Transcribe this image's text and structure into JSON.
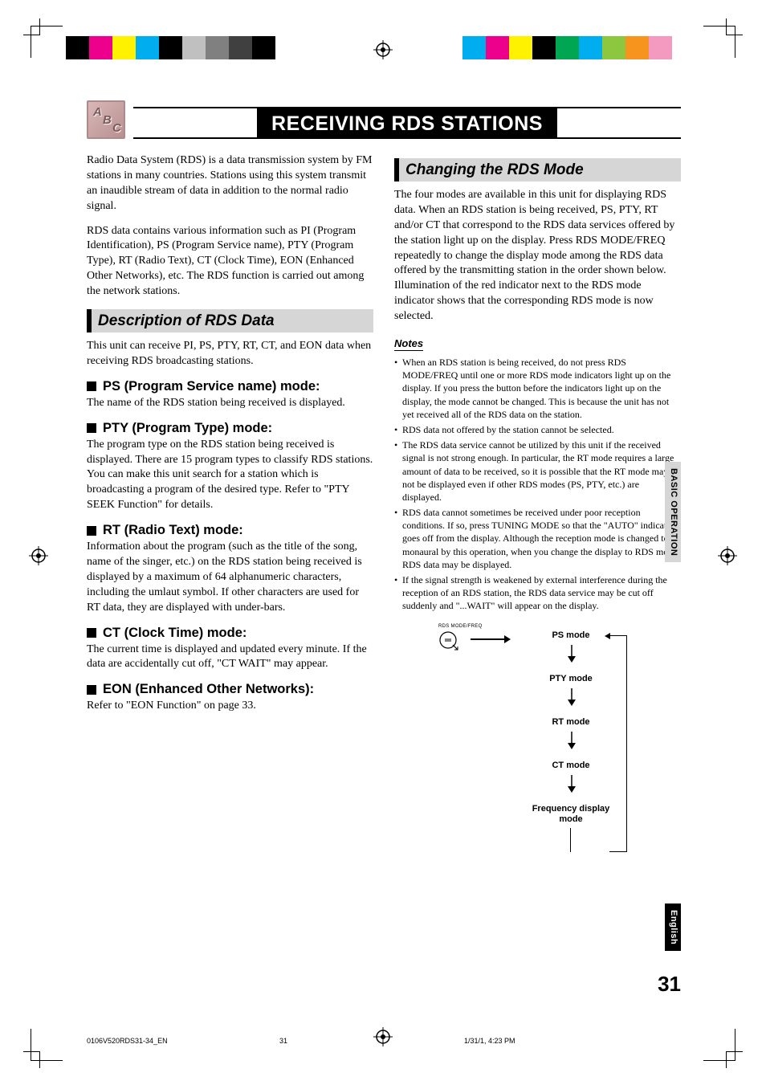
{
  "registration": {
    "left_colors": [
      "#000000",
      "#ec008c",
      "#fff200",
      "#00aeef",
      "#000000",
      "#c0c0c0",
      "#808080",
      "#404040",
      "#000000"
    ],
    "right_colors": [
      "#00aeef",
      "#ec008c",
      "#fff200",
      "#000000",
      "#00a651",
      "#00aeef",
      "#8dc63f",
      "#f7941e",
      "#f49ac1"
    ]
  },
  "header": {
    "icon_letters": [
      "A",
      "B",
      "C"
    ],
    "title": "RECEIVING RDS STATIONS"
  },
  "left_col": {
    "intro1": "Radio Data System (RDS) is a data transmission system by FM stations in many countries. Stations using this system transmit an inaudible stream of data in addition to the normal radio signal.",
    "intro2": "RDS data contains various information such as PI (Program Identification), PS (Program Service name), PTY (Program Type), RT (Radio Text), CT (Clock Time), EON (Enhanced Other Networks), etc. The RDS function is carried out among the network stations.",
    "section1_title": "Description of RDS Data",
    "section1_text": "This unit can receive PI, PS, PTY, RT, CT, and EON data when receiving RDS broadcasting stations.",
    "ps_h": "PS (Program Service name) mode:",
    "ps_t": "The name of the RDS station being received is displayed.",
    "pty_h": "PTY (Program Type) mode:",
    "pty_t": "The program type on the RDS station being received is displayed. There are 15 program types to classify RDS stations. You can make this unit search for a station which is broadcasting a program of the desired type. Refer to \"PTY SEEK Function\" for details.",
    "rt_h": "RT (Radio Text) mode:",
    "rt_t": "Information about the program (such as the title of the song, name of the singer, etc.) on the RDS station being received is displayed by a maximum of 64 alphanumeric characters, including the umlaut symbol. If other characters are used for RT data, they are displayed with under-bars.",
    "ct_h": "CT (Clock Time) mode:",
    "ct_t": "The current time is displayed and updated every minute. If the data are accidentally cut off, \"CT WAIT\" may appear.",
    "eon_h": "EON (Enhanced Other Networks):",
    "eon_t": "Refer to \"EON Function\" on page 33."
  },
  "right_col": {
    "section2_title": "Changing the RDS Mode",
    "section2_text": "The four modes are available in this unit for displaying RDS data. When an RDS station is being received, PS, PTY, RT and/or CT that correspond to the RDS data services offered by the station light up on the display. Press RDS MODE/FREQ repeatedly to change the display mode among the RDS data offered by the transmitting station in the order shown below. Illumination of the red indicator next to the RDS mode indicator shows that the corresponding RDS mode is now selected.",
    "notes_label": "Notes",
    "notes": [
      "When an RDS station is being received, do not press RDS MODE/FREQ until one or more RDS mode indicators light up on the display. If you press the button before the indicators light up on the display, the mode cannot be changed. This is because the unit has not yet received all of the RDS data on the station.",
      "RDS data not offered by the station cannot be selected.",
      "The RDS data service cannot be utilized by this unit if the received signal is not strong enough. In particular, the RT mode requires a large amount of data to be received, so it is possible that the RT mode may not be displayed even if other RDS modes (PS, PTY, etc.) are displayed.",
      "RDS data cannot sometimes be received under poor reception conditions. If so, press TUNING MODE so that the \"AUTO\" indicator goes off from the display. Although the reception mode is changed to monaural by this operation, when you change the display to RDS mode, RDS data may be displayed.",
      "If the signal strength is weakened by external interference during the reception of an RDS station, the RDS data service may be cut off suddenly and \"...WAIT\" will appear on the display."
    ],
    "flow": {
      "btn_label": "RDS MODE/FREQ",
      "items": [
        "PS mode",
        "PTY mode",
        "RT mode",
        "CT mode",
        "Frequency display mode"
      ]
    }
  },
  "side": {
    "gray": "BASIC OPERATION",
    "black": "English"
  },
  "page_number": "31",
  "slug": {
    "file": "0106V520RDS31-34_EN",
    "page": "31",
    "date": "1/31/1, 4:23 PM"
  }
}
